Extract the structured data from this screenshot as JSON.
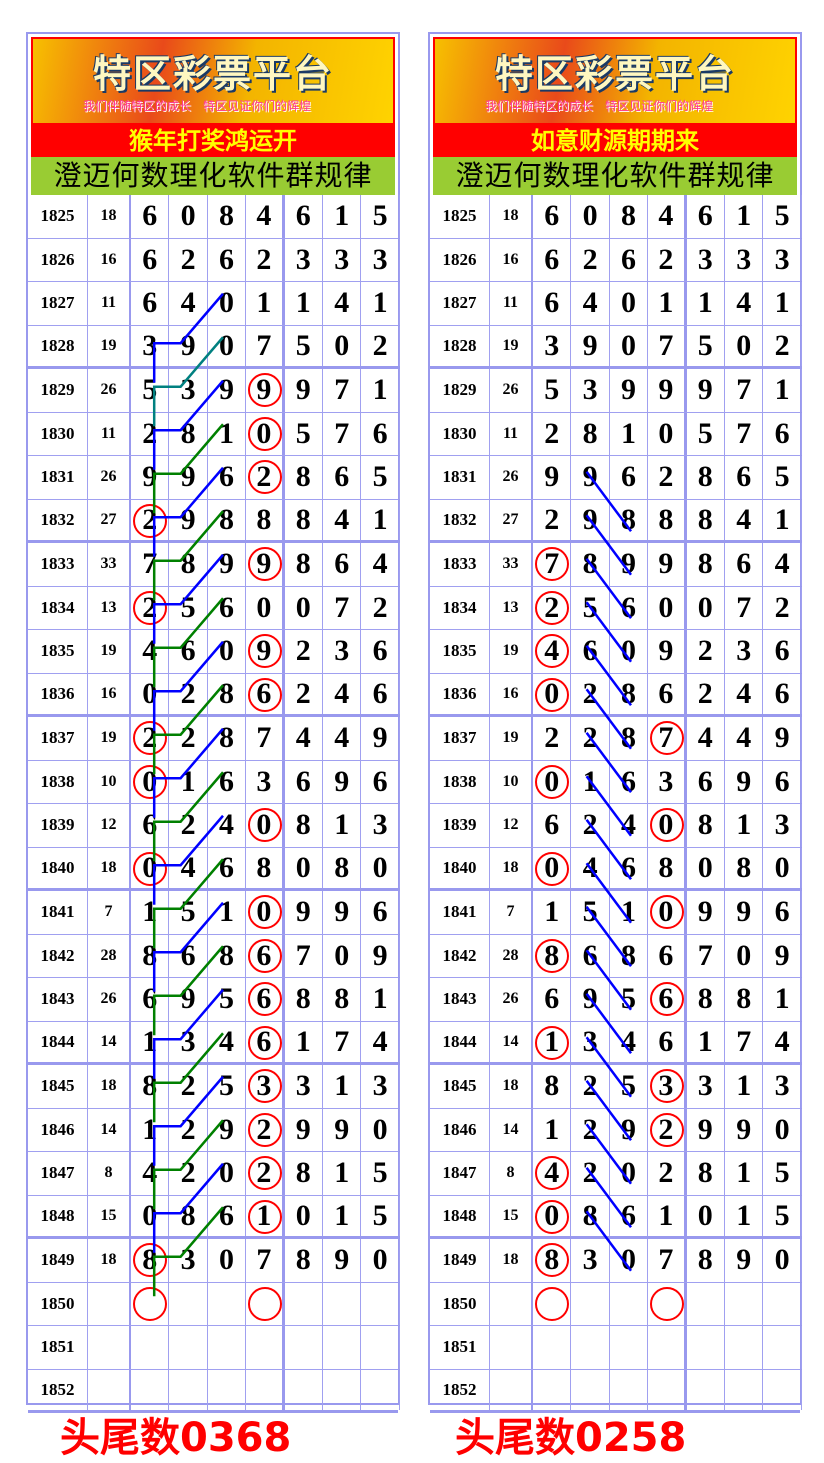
{
  "banner": {
    "title": "特区彩票平台",
    "subtitle": "我们伴随特区的成长　特区见证你们的辉煌"
  },
  "software_title": "澄迈何数理化软件群规律",
  "colors": {
    "circle": "#ff0000",
    "line_blue": "#0000ff",
    "line_green": "#008000",
    "line_teal": "#008080"
  },
  "rows": [
    {
      "period": "1825",
      "sum": "18",
      "digits": [
        "6",
        "0",
        "8",
        "4",
        "6",
        "1",
        "5"
      ]
    },
    {
      "period": "1826",
      "sum": "16",
      "digits": [
        "6",
        "2",
        "6",
        "2",
        "3",
        "3",
        "3"
      ]
    },
    {
      "period": "1827",
      "sum": "11",
      "digits": [
        "6",
        "4",
        "0",
        "1",
        "1",
        "4",
        "1"
      ]
    },
    {
      "period": "1828",
      "sum": "19",
      "digits": [
        "3",
        "9",
        "0",
        "7",
        "5",
        "0",
        "2"
      ]
    },
    {
      "period": "1829",
      "sum": "26",
      "digits": [
        "5",
        "3",
        "9",
        "9",
        "9",
        "7",
        "1"
      ]
    },
    {
      "period": "1830",
      "sum": "11",
      "digits": [
        "2",
        "8",
        "1",
        "0",
        "5",
        "7",
        "6"
      ]
    },
    {
      "period": "1831",
      "sum": "26",
      "digits": [
        "9",
        "9",
        "6",
        "2",
        "8",
        "6",
        "5"
      ]
    },
    {
      "period": "1832",
      "sum": "27",
      "digits": [
        "2",
        "9",
        "8",
        "8",
        "8",
        "4",
        "1"
      ]
    },
    {
      "period": "1833",
      "sum": "33",
      "digits": [
        "7",
        "8",
        "9",
        "9",
        "8",
        "6",
        "4"
      ]
    },
    {
      "period": "1834",
      "sum": "13",
      "digits": [
        "2",
        "5",
        "6",
        "0",
        "0",
        "7",
        "2"
      ]
    },
    {
      "period": "1835",
      "sum": "19",
      "digits": [
        "4",
        "6",
        "0",
        "9",
        "2",
        "3",
        "6"
      ]
    },
    {
      "period": "1836",
      "sum": "16",
      "digits": [
        "0",
        "2",
        "8",
        "6",
        "2",
        "4",
        "6"
      ]
    },
    {
      "period": "1837",
      "sum": "19",
      "digits": [
        "2",
        "2",
        "8",
        "7",
        "4",
        "4",
        "9"
      ]
    },
    {
      "period": "1838",
      "sum": "10",
      "digits": [
        "0",
        "1",
        "6",
        "3",
        "6",
        "9",
        "6"
      ]
    },
    {
      "period": "1839",
      "sum": "12",
      "digits": [
        "6",
        "2",
        "4",
        "0",
        "8",
        "1",
        "3"
      ]
    },
    {
      "period": "1840",
      "sum": "18",
      "digits": [
        "0",
        "4",
        "6",
        "8",
        "0",
        "8",
        "0"
      ]
    },
    {
      "period": "1841",
      "sum": "7",
      "digits": [
        "1",
        "5",
        "1",
        "0",
        "9",
        "9",
        "6"
      ]
    },
    {
      "period": "1842",
      "sum": "28",
      "digits": [
        "8",
        "6",
        "8",
        "6",
        "7",
        "0",
        "9"
      ]
    },
    {
      "period": "1843",
      "sum": "26",
      "digits": [
        "6",
        "9",
        "5",
        "6",
        "8",
        "8",
        "1"
      ]
    },
    {
      "period": "1844",
      "sum": "14",
      "digits": [
        "1",
        "3",
        "4",
        "6",
        "1",
        "7",
        "4"
      ]
    },
    {
      "period": "1845",
      "sum": "18",
      "digits": [
        "8",
        "2",
        "5",
        "3",
        "3",
        "1",
        "3"
      ]
    },
    {
      "period": "1846",
      "sum": "14",
      "digits": [
        "1",
        "2",
        "9",
        "2",
        "9",
        "9",
        "0"
      ]
    },
    {
      "period": "1847",
      "sum": "8",
      "digits": [
        "4",
        "2",
        "0",
        "2",
        "8",
        "1",
        "5"
      ]
    },
    {
      "period": "1848",
      "sum": "15",
      "digits": [
        "0",
        "8",
        "6",
        "1",
        "0",
        "1",
        "5"
      ]
    },
    {
      "period": "1849",
      "sum": "18",
      "digits": [
        "8",
        "3",
        "0",
        "7",
        "8",
        "9",
        "0"
      ]
    },
    {
      "period": "1850",
      "sum": "",
      "digits": [
        "",
        "",
        "",
        "",
        "",
        "",
        ""
      ]
    },
    {
      "period": "1851",
      "sum": "",
      "digits": [
        "",
        "",
        "",
        "",
        "",
        "",
        ""
      ]
    },
    {
      "period": "1852",
      "sum": "",
      "digits": [
        "",
        "",
        "",
        "",
        "",
        "",
        ""
      ]
    }
  ],
  "panels": [
    {
      "slogan": "猴年打奖鸿运开",
      "footer": "头尾数0368",
      "circles": {
        "1829": [
          3
        ],
        "1830": [
          3
        ],
        "1831": [
          3
        ],
        "1832": [
          0
        ],
        "1833": [
          3
        ],
        "1834": [
          0
        ],
        "1835": [
          3
        ],
        "1836": [
          3
        ],
        "1837": [
          0
        ],
        "1838": [
          0
        ],
        "1839": [
          3
        ],
        "1840": [
          0
        ],
        "1841": [
          3
        ],
        "1842": [
          3
        ],
        "1843": [
          3
        ],
        "1844": [
          3
        ],
        "1845": [
          3
        ],
        "1846": [
          3
        ],
        "1847": [
          3
        ],
        "1848": [
          3
        ],
        "1849": [
          0
        ],
        "1850": [
          0,
          3
        ]
      }
    },
    {
      "slogan": "如意财源期期来",
      "footer": "头尾数0258",
      "circles": {
        "1833": [
          0
        ],
        "1834": [
          0
        ],
        "1835": [
          0
        ],
        "1836": [
          0
        ],
        "1837": [
          3
        ],
        "1838": [
          0
        ],
        "1839": [
          3
        ],
        "1840": [
          0
        ],
        "1841": [
          3
        ],
        "1842": [
          0
        ],
        "1843": [
          3
        ],
        "1844": [
          0
        ],
        "1845": [
          3
        ],
        "1846": [
          3
        ],
        "1847": [
          0
        ],
        "1848": [
          0
        ],
        "1849": [
          0
        ],
        "1850": [
          0,
          3
        ]
      }
    }
  ]
}
